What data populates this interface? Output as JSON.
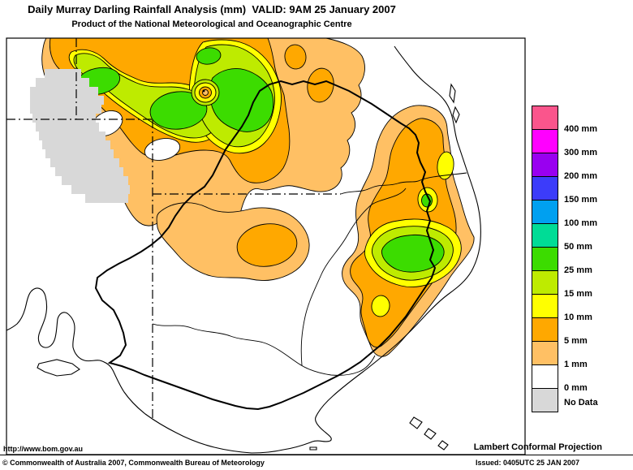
{
  "header": {
    "title": "Daily Murray Darling Rainfall Analysis (mm)  VALID: 9AM 25 January 2007",
    "subtitle": "Product of the National Meteorological and Oceanographic Centre"
  },
  "legend": {
    "entries": [
      {
        "label": "400 mm",
        "color": "#FA558C"
      },
      {
        "label": "300 mm",
        "color": "#FF00FF"
      },
      {
        "label": "200 mm",
        "color": "#9900F0"
      },
      {
        "label": "150 mm",
        "color": "#3C3CFA"
      },
      {
        "label": "100 mm",
        "color": "#00A0F0"
      },
      {
        "label": "50 mm",
        "color": "#00DC96"
      },
      {
        "label": "25 mm",
        "color": "#3CDC00"
      },
      {
        "label": "15 mm",
        "color": "#BEEB00"
      },
      {
        "label": "10 mm",
        "color": "#FFFF00"
      },
      {
        "label": "5 mm",
        "color": "#FFA800"
      },
      {
        "label": "1 mm",
        "color": "#FFC064"
      },
      {
        "label": "0 mm",
        "color": "#FFFFFF"
      },
      {
        "label": "No Data",
        "color": "#D8D8D8"
      }
    ]
  },
  "footer": {
    "url": "http://www.bom.gov.au",
    "projection": "Lambert Conformal Projection",
    "copyright": "© Commonwealth of Australia 2007, Commonwealth Bureau of Meteorology",
    "issued": "Issued: 0405UTC 25 JAN 2007"
  }
}
